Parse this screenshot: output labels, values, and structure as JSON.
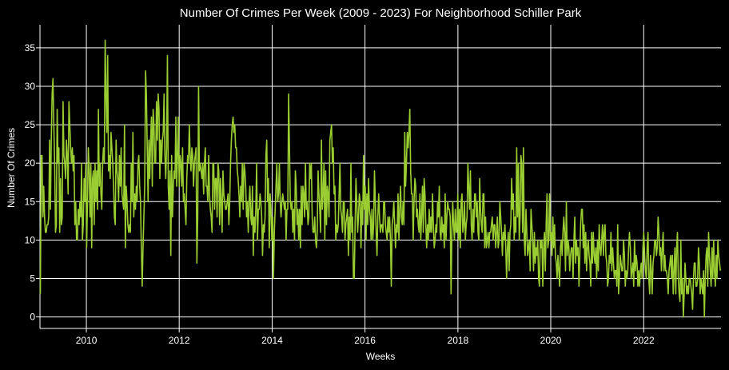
{
  "chart_data": {
    "type": "line",
    "title": "Number Of Crimes Per Week (2009 - 2023) For Neighborhood Schiller Park",
    "xlabel": "Weeks",
    "ylabel": "Number Of Crimes",
    "x_range": [
      "2009-01-01",
      "2023-09-01"
    ],
    "ylim": [
      -1.5,
      38
    ],
    "x_ticks": [
      "2010",
      "2012",
      "2014",
      "2016",
      "2018",
      "2020",
      "2022"
    ],
    "y_ticks": [
      0,
      5,
      10,
      15,
      20,
      25,
      30,
      35
    ],
    "grid": true,
    "colors": {
      "background": "#000000",
      "grid": "#ffffff",
      "line": "#9acd32",
      "text": "#ffffff"
    },
    "series": [
      {
        "name": "",
        "x_start": "2009-01-04",
        "x_step": "1 week",
        "x_end": "2023-08-27",
        "values": [
          3,
          21,
          21,
          13,
          17,
          13,
          11,
          11,
          12,
          12,
          13,
          23,
          14,
          23,
          29,
          31,
          25,
          20,
          11,
          12,
          27,
          20,
          22,
          11,
          18,
          12,
          13,
          28,
          21,
          20,
          18,
          23,
          21,
          16,
          28,
          25,
          22,
          20,
          22,
          19,
          21,
          12,
          15,
          10,
          10,
          14,
          12,
          15,
          13,
          20,
          10,
          12,
          18,
          15,
          20,
          9,
          15,
          22,
          19,
          13,
          20,
          9,
          18,
          19,
          12,
          20,
          15,
          19,
          14,
          27,
          17,
          20,
          16,
          14,
          20,
          22,
          20,
          36,
          29,
          24,
          34,
          19,
          21,
          18,
          24,
          22,
          20,
          17,
          13,
          12,
          23,
          19,
          18,
          15,
          21,
          17,
          22,
          16,
          15,
          14,
          25,
          9,
          17,
          15,
          12,
          11,
          12,
          11,
          20,
          15,
          24,
          13,
          16,
          14,
          17,
          15,
          20,
          21,
          17,
          15,
          9,
          4,
          9,
          13,
          17,
          32,
          29,
          22,
          15,
          23,
          18,
          23,
          26,
          17,
          27,
          25,
          20,
          20,
          28,
          23,
          29,
          27,
          18,
          23,
          20,
          23,
          24,
          29,
          21,
          18,
          22,
          34,
          17,
          14,
          19,
          8,
          21,
          13,
          17,
          19,
          18,
          26,
          17,
          21,
          26,
          17,
          21,
          20,
          17,
          22,
          15,
          16,
          14,
          12,
          18,
          21,
          20,
          25,
          21,
          19,
          22,
          21,
          17,
          20,
          21,
          22,
          7,
          13,
          30,
          19,
          20,
          19,
          18,
          20,
          16,
          20,
          22,
          17,
          17,
          15,
          21,
          16,
          14,
          13,
          11,
          20,
          20,
          14,
          18,
          18,
          13,
          20,
          19,
          12,
          18,
          15,
          11,
          19,
          16,
          15,
          14,
          14,
          15,
          16,
          12,
          15,
          20,
          23,
          25,
          26,
          24,
          25,
          22,
          22,
          19,
          18,
          16,
          13,
          17,
          15,
          20,
          14,
          20,
          19,
          17,
          13,
          15,
          11,
          15,
          17,
          13,
          12,
          17,
          8,
          13,
          11,
          14,
          20,
          10,
          14,
          14,
          16,
          15,
          13,
          8,
          12,
          11,
          13,
          21,
          23,
          15,
          18,
          9,
          16,
          14,
          10,
          13,
          5,
          11,
          14,
          17,
          20,
          15,
          16,
          20,
          15,
          13,
          15,
          16,
          15,
          14,
          15,
          10,
          14,
          14,
          29,
          22,
          15,
          14,
          15,
          11,
          14,
          10,
          19,
          17,
          12,
          14,
          10,
          14,
          9,
          17,
          12,
          17,
          16,
          13,
          20,
          14,
          15,
          12,
          13,
          20,
          18,
          20,
          13,
          11,
          11,
          13,
          10,
          9,
          11,
          19,
          16,
          14,
          11,
          23,
          14,
          16,
          20,
          10,
          19,
          12,
          17,
          16,
          13,
          23,
          24,
          25,
          20,
          22,
          16,
          17,
          10,
          12,
          11,
          12,
          16,
          20,
          14,
          13,
          11,
          15,
          15,
          10,
          12,
          13,
          14,
          8,
          13,
          10,
          20,
          11,
          13,
          5,
          5,
          12,
          18,
          15,
          11,
          13,
          16,
          15,
          9,
          15,
          12,
          21,
          14,
          17,
          10,
          16,
          12,
          18,
          14,
          13,
          10,
          14,
          10,
          12,
          19,
          15,
          11,
          8,
          13,
          16,
          13,
          11,
          12,
          12,
          11,
          15,
          15,
          12,
          11,
          10,
          13,
          11,
          13,
          10,
          4,
          12,
          13,
          15,
          12,
          9,
          12,
          11,
          16,
          10,
          14,
          17,
          13,
          12,
          15,
          12,
          24,
          17,
          20,
          24,
          22,
          24,
          27,
          19,
          16,
          16,
          10,
          15,
          18,
          17,
          13,
          14,
          12,
          11,
          16,
          10,
          13,
          17,
          11,
          18,
          16,
          12,
          9,
          12,
          10,
          14,
          11,
          13,
          11,
          16,
          12,
          9,
          10,
          12,
          11,
          15,
          13,
          17,
          11,
          10,
          13,
          11,
          12,
          9,
          16,
          10,
          13,
          15,
          14,
          14,
          13,
          3,
          11,
          15,
          12,
          10,
          14,
          11,
          11,
          16,
          10,
          14,
          9,
          15,
          16,
          11,
          12,
          15,
          10,
          12,
          13,
          20,
          17,
          14,
          19,
          12,
          10,
          14,
          11,
          16,
          16,
          13,
          15,
          11,
          10,
          18,
          14,
          12,
          11,
          16,
          16,
          9,
          13,
          9,
          10,
          11,
          9,
          11,
          11,
          12,
          13,
          10,
          12,
          12,
          9,
          11,
          13,
          9,
          10,
          15,
          13,
          11,
          8,
          11,
          10,
          12,
          9,
          5,
          9,
          11,
          6,
          11,
          12,
          18,
          14,
          16,
          10,
          13,
          11,
          22,
          13,
          20,
          10,
          13,
          21,
          20,
          11,
          22,
          10,
          8,
          14,
          11,
          8,
          9,
          10,
          6,
          14,
          12,
          10,
          6,
          11,
          7,
          9,
          8,
          10,
          5,
          4,
          10,
          9,
          10,
          4,
          9,
          11,
          6,
          12,
          16,
          9,
          10,
          16,
          10,
          11,
          8,
          13,
          9,
          12,
          8,
          7,
          5,
          8,
          6,
          4,
          9,
          10,
          8,
          11,
          13,
          11,
          6,
          15,
          8,
          10,
          9,
          6,
          8,
          9,
          9,
          5,
          10,
          13,
          7,
          10,
          8,
          9,
          4,
          8,
          12,
          14,
          14,
          9,
          12,
          7,
          11,
          6,
          9,
          10,
          8,
          7,
          4,
          11,
          7,
          11,
          8,
          7,
          9,
          5,
          10,
          6,
          12,
          9,
          8,
          10,
          12,
          8,
          11,
          12,
          8,
          7,
          4,
          5,
          8,
          7,
          11,
          6,
          9,
          7,
          5,
          6,
          6,
          4,
          12,
          3,
          5,
          8,
          7,
          6,
          6,
          10,
          8,
          4,
          6,
          5,
          6,
          9,
          11,
          9,
          5,
          6,
          7,
          4,
          10,
          6,
          8,
          7,
          4,
          6,
          4,
          6,
          7,
          5,
          9,
          11,
          8,
          6,
          5,
          9,
          11,
          5,
          3,
          8,
          6,
          3,
          7,
          8,
          10,
          10,
          8,
          9,
          13,
          11,
          8,
          9,
          6,
          9,
          11,
          6,
          8,
          6,
          6,
          5,
          3,
          6,
          7,
          8,
          5,
          8,
          3,
          6,
          9,
          3,
          9,
          11,
          5,
          3,
          2,
          10,
          3,
          5,
          0,
          3,
          7,
          5,
          3,
          4,
          3,
          5,
          5,
          4,
          3,
          1,
          5,
          7,
          7,
          4,
          4,
          5,
          9,
          7,
          3,
          5,
          4,
          3,
          6,
          0,
          5,
          8,
          9,
          4,
          11,
          8,
          6,
          4,
          9,
          5,
          10,
          6,
          4,
          8,
          5,
          10,
          8,
          7,
          6
        ]
      }
    ]
  }
}
